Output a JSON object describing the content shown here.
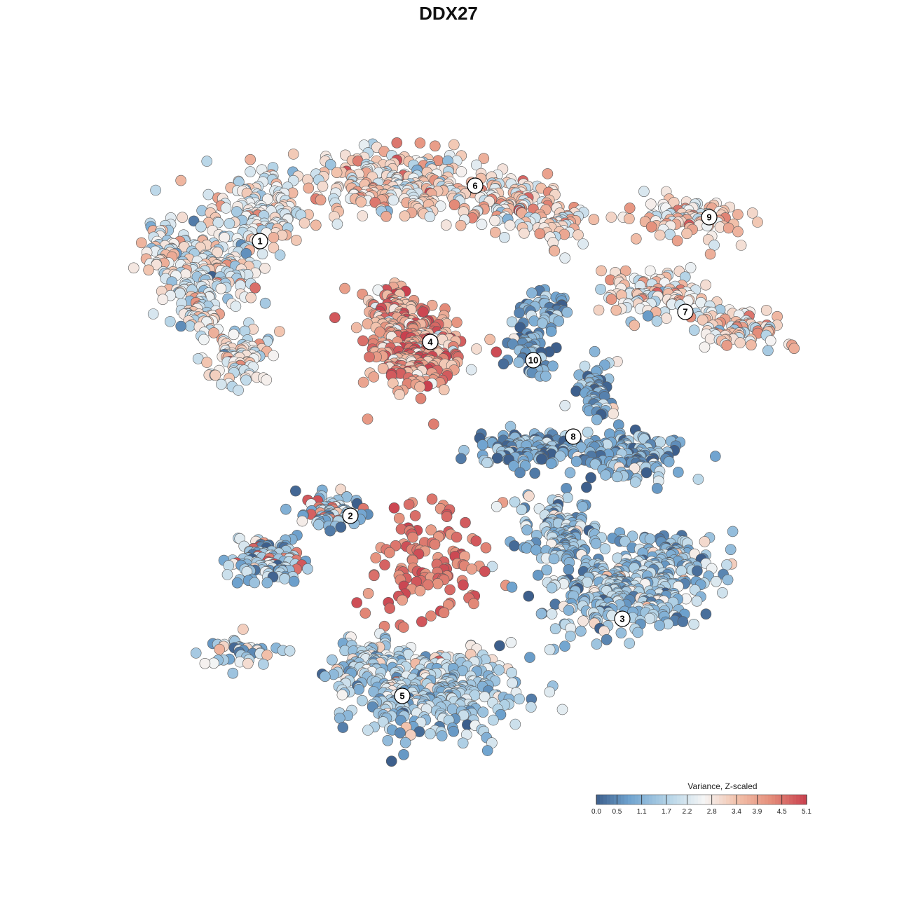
{
  "chart_data": {
    "type": "scatter",
    "title": "DDX27",
    "description_kind": "tSNE embedding colored by z-scaled variance",
    "legend": {
      "title": "Variance, Z-scaled",
      "placement": "bottom-right",
      "ticks": [
        "0.0",
        "0.5",
        "1.1",
        "1.7",
        "2.2",
        "2.8",
        "3.4",
        "3.9",
        "4.5",
        "5.1"
      ],
      "range": [
        0.0,
        5.1
      ]
    },
    "colors": {
      "low": "#3d5f8c",
      "mid_low": "#6fa3cf",
      "mid_light": "#b8d6e8",
      "mid": "#f5f5f5",
      "mid_high": "#f2c2ac",
      "high": "#e5907c",
      "max": "#c9404e"
    },
    "clusters": [
      {
        "id": "1",
        "mean_value": 2.5
      },
      {
        "id": "2",
        "mean_value": 1.4
      },
      {
        "id": "3",
        "mean_value": 1.4
      },
      {
        "id": "4",
        "mean_value": 3.8
      },
      {
        "id": "5",
        "mean_value": 1.7
      },
      {
        "id": "6",
        "mean_value": 3.0
      },
      {
        "id": "7",
        "mean_value": 2.9
      },
      {
        "id": "8",
        "mean_value": 1.0
      },
      {
        "id": "9",
        "mean_value": 3.1
      },
      {
        "id": "10",
        "mean_value": 0.9
      }
    ]
  }
}
